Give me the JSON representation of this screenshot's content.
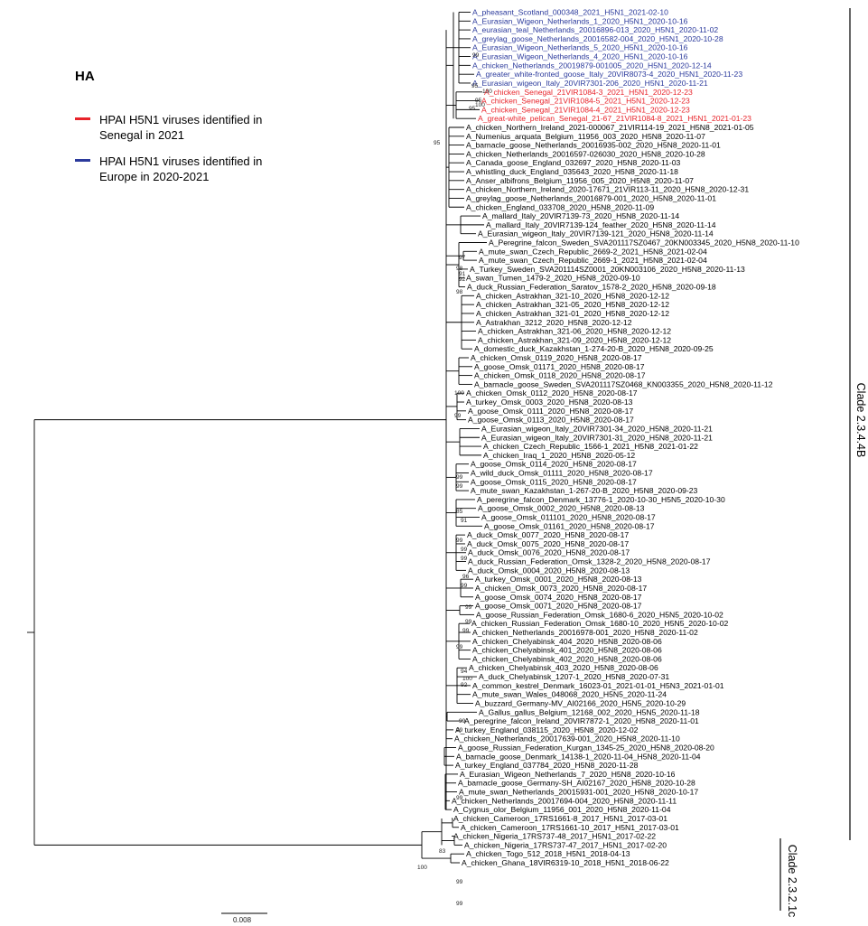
{
  "legend": {
    "title": "HA",
    "items": [
      {
        "label": "HPAI H5N1 viruses identified in Senegal in 2021",
        "color": "#e8232a"
      },
      {
        "label": "HPAI H5N1 viruses identified in Europe in 2020-2021",
        "color": "#2b3a9c"
      }
    ]
  },
  "colors": {
    "red": "#e8232a",
    "blue": "#2b3a9c",
    "black": "#000000"
  },
  "clades": [
    {
      "label": "Clade 2.3.4.4B"
    },
    {
      "label": "Clade 2.3.2.1c"
    }
  ],
  "scale_bar": {
    "label": "0.008"
  },
  "taxa": [
    {
      "label": "A_pheasant_Scotland_000348_2021_H5N1_2021-02-10",
      "color": "blue"
    },
    {
      "label": "A_Eurasian_Wigeon_Netherlands_1_2020_H5N1_2020-10-16",
      "color": "blue"
    },
    {
      "label": "A_eurasian_teal_Netherlands_20016896-013_2020_H5N1_2020-11-02",
      "color": "blue"
    },
    {
      "label": "A_greylag_goose_Netherlands_20016582-004_2020_H5N1_2020-10-28",
      "color": "blue"
    },
    {
      "label": "A_Eurasian_Wigeon_Netherlands_5_2020_H5N1_2020-10-16",
      "color": "blue"
    },
    {
      "label": "A_Eurasian_Wigeon_Netherlands_4_2020_H5N1_2020-10-16",
      "color": "blue"
    },
    {
      "label": "A_chicken_Netherlands_20019879-001005_2020_H5N1_2020-12-14",
      "color": "blue"
    },
    {
      "label": "A_greater_white-fronted_goose_Italy_20VIR8073-4_2020_H5N1_2020-11-23",
      "color": "blue"
    },
    {
      "label": "A_Eurasian_wigeon_Italy_20VIR7301-206_2020_H5N1_2020-11-21",
      "color": "blue"
    },
    {
      "label": "A_chicken_Senegal_21VIR1084-3_2021_H5N1_2020-12-23",
      "color": "red"
    },
    {
      "label": "A_chicken_Senegal_21VIR1084-5_2021_H5N1_2020-12-23",
      "color": "red"
    },
    {
      "label": "A_chicken_Senegal_21VIR1084-4_2021_H5N1_2020-12-23",
      "color": "red"
    },
    {
      "label": "A_great-white_pelican_Senegal_21-67_21VIR1084-8_2021_H5N1_2021-01-23",
      "color": "red"
    },
    {
      "label": "A_chicken_Northern_Ireland_2021-000067_21VIR114-19_2021_H5N8_2021-01-05",
      "color": "black"
    },
    {
      "label": "A_Numenius_arquata_Belgium_11956_003_2020_H5N8_2020-11-07",
      "color": "black"
    },
    {
      "label": "A_barnacle_goose_Netherlands_20016935-002_2020_H5N8_2020-11-01",
      "color": "black"
    },
    {
      "label": "A_chicken_Netherlands_20016597-026030_2020_H5N8_2020-10-28",
      "color": "black"
    },
    {
      "label": "A_Canada_goose_England_032697_2020_H5N8_2020-11-03",
      "color": "black"
    },
    {
      "label": "A_whistling_duck_England_035643_2020_H5N8_2020-11-18",
      "color": "black"
    },
    {
      "label": "A_Anser_albifrons_Belgium_11956_005_2020_H5N8_2020-11-07",
      "color": "black"
    },
    {
      "label": "A_chicken_Northern_Ireland_2020-17671_21VIR113-11_2020_H5N8_2020-12-31",
      "color": "black"
    },
    {
      "label": "A_greylag_goose_Netherlands_20016879-001_2020_H5N8_2020-11-01",
      "color": "black"
    },
    {
      "label": "A_chicken_England_033708_2020_H5N8_2020-11-09",
      "color": "black"
    },
    {
      "label": "A_mallard_Italy_20VIR7139-73_2020_H5N8_2020-11-14",
      "color": "black"
    },
    {
      "label": "A_mallard_Italy_20VIR7139-124_feather_2020_H5N8_2020-11-14",
      "color": "black"
    },
    {
      "label": "A_Eurasian_wigeon_Italy_20VIR7139-121_2020_H5N8_2020-11-14",
      "color": "black"
    },
    {
      "label": "A_Peregrine_falcon_Sweden_SVA201117SZ0467_20KN003345_2020_H5N8_2020-11-10",
      "color": "black"
    },
    {
      "label": "A_mute_swan_Czech_Republic_2669-2_2021_H5N8_2021-02-04",
      "color": "black"
    },
    {
      "label": "A_mute_swan_Czech_Republic_2669-1_2021_H5N8_2021-02-04",
      "color": "black"
    },
    {
      "label": "A_Turkey_Sweden_SVA201114SZ0001_20KN003106_2020_H5N8_2020-11-13",
      "color": "black"
    },
    {
      "label": "A_swan_Tumen_1479-2_2020_H5N8_2020-09-10",
      "color": "black"
    },
    {
      "label": "A_duck_Russian_Federation_Saratov_1578-2_2020_H5N8_2020-09-18",
      "color": "black"
    },
    {
      "label": "A_chicken_Astrakhan_321-10_2020_H5N8_2020-12-12",
      "color": "black"
    },
    {
      "label": "A_chicken_Astrakhan_321-05_2020_H5N8_2020-12-12",
      "color": "black"
    },
    {
      "label": "A_chicken_Astrakhan_321-01_2020_H5N8_2020-12-12",
      "color": "black"
    },
    {
      "label": "A_Astrakhan_3212_2020_H5N8_2020-12-12",
      "color": "black"
    },
    {
      "label": "A_chicken_Astrakhan_321-06_2020_H5N8_2020-12-12",
      "color": "black"
    },
    {
      "label": "A_chicken_Astrakhan_321-09_2020_H5N8_2020-12-12",
      "color": "black"
    },
    {
      "label": "A_domestic_duck_Kazakhstan_1-274-20-B_2020_H5N8_2020-09-25",
      "color": "black"
    },
    {
      "label": "A_chicken_Omsk_0119_2020_H5N8_2020-08-17",
      "color": "black"
    },
    {
      "label": "A_goose_Omsk_01171_2020_H5N8_2020-08-17",
      "color": "black"
    },
    {
      "label": "A_chicken_Omsk_0118_2020_H5N8_2020-08-17",
      "color": "black"
    },
    {
      "label": "A_barnacle_goose_Sweden_SVA201117SZ0468_KN003355_2020_H5N8_2020-11-12",
      "color": "black"
    },
    {
      "label": "A_chicken_Omsk_0112_2020_H5N8_2020-08-17",
      "color": "black"
    },
    {
      "label": "A_turkey_Omsk_0003_2020_H5N8_2020-08-13",
      "color": "black"
    },
    {
      "label": "A_goose_Omsk_0111_2020_H5N8_2020-08-17",
      "color": "black"
    },
    {
      "label": "A_goose_Omsk_0113_2020_H5N8_2020-08-17",
      "color": "black"
    },
    {
      "label": "A_Eurasian_wigeon_Italy_20VIR7301-34_2020_H5N8_2020-11-21",
      "color": "black"
    },
    {
      "label": "A_Eurasian_wigeon_Italy_20VIR7301-31_2020_H5N8_2020-11-21",
      "color": "black"
    },
    {
      "label": "A_chicken_Czech_Republic_1566-1_2021_H5N8_2021-01-22",
      "color": "black"
    },
    {
      "label": "A_chicken_Iraq_1_2020_H5N8_2020-05-12",
      "color": "black"
    },
    {
      "label": "A_goose_Omsk_0114_2020_H5N8_2020-08-17",
      "color": "black"
    },
    {
      "label": "A_wild_duck_Omsk_01111_2020_H5N8_2020-08-17",
      "color": "black"
    },
    {
      "label": "A_goose_Omsk_0115_2020_H5N8_2020-08-17",
      "color": "black"
    },
    {
      "label": "A_mute_swan_Kazakhstan_1-267-20-B_2020_H5N8_2020-09-23",
      "color": "black"
    },
    {
      "label": "A_peregrine_falcon_Denmark_13776-1_2020-10-30_H5N5_2020-10-30",
      "color": "black"
    },
    {
      "label": "A_goose_Omsk_0002_2020_H5N8_2020-08-13",
      "color": "black"
    },
    {
      "label": "A_goose_Omsk_011101_2020_H5N8_2020-08-17",
      "color": "black"
    },
    {
      "label": "A_goose_Omsk_01161_2020_H5N8_2020-08-17",
      "color": "black"
    },
    {
      "label": "A_duck_Omsk_0077_2020_H5N8_2020-08-17",
      "color": "black"
    },
    {
      "label": "A_duck_Omsk_0075_2020_H5N8_2020-08-17",
      "color": "black"
    },
    {
      "label": "A_duck_Omsk_0076_2020_H5N8_2020-08-17",
      "color": "black"
    },
    {
      "label": "A_duck_Russian_Federation_Omsk_1328-2_2020_H5N8_2020-08-17",
      "color": "black"
    },
    {
      "label": "A_duck_Omsk_0004_2020_H5N8_2020-08-13",
      "color": "black"
    },
    {
      "label": "A_turkey_Omsk_0001_2020_H5N8_2020-08-13",
      "color": "black"
    },
    {
      "label": "A_chicken_Omsk_0073_2020_H5N8_2020-08-17",
      "color": "black"
    },
    {
      "label": "A_goose_Omsk_0074_2020_H5N8_2020-08-17",
      "color": "black"
    },
    {
      "label": "A_goose_Omsk_0071_2020_H5N8_2020-08-17",
      "color": "black"
    },
    {
      "label": "A_goose_Russian_Federation_Omsk_1680-6_2020_H5N5_2020-10-02",
      "color": "black"
    },
    {
      "label": "A_chicken_Russian_Federation_Omsk_1680-10_2020_H5N5_2020-10-02",
      "color": "black"
    },
    {
      "label": "A_chicken_Netherlands_20016978-001_2020_H5N8_2020-11-02",
      "color": "black"
    },
    {
      "label": "A_chicken_Chelyabinsk_404_2020_H5N8_2020-08-06",
      "color": "black"
    },
    {
      "label": "A_chicken_Chelyabinsk_401_2020_H5N8_2020-08-06",
      "color": "black"
    },
    {
      "label": "A_chicken_Chelyabinsk_402_2020_H5N8_2020-08-06",
      "color": "black"
    },
    {
      "label": "A_chicken_Chelyabinsk_403_2020_H5N8_2020-08-06",
      "color": "black"
    },
    {
      "label": "A_duck_Chelyabinsk_1207-1_2020_H5N8_2020-07-31",
      "color": "black"
    },
    {
      "label": "A_common_kestrel_Denmark_16023-01_2021-01-01_H5N3_2021-01-01",
      "color": "black"
    },
    {
      "label": "A_mute_swan_Wales_048068_2020_H5N5_2020-11-24",
      "color": "black"
    },
    {
      "label": "A_buzzard_Germany-MV_AI02166_2020_H5N5_2020-10-29",
      "color": "black"
    },
    {
      "label": "A_Gallus_gallus_Belgium_12168_002_2020_H5N5_2020-11-18",
      "color": "black"
    },
    {
      "label": "A_peregrine_falcon_Ireland_20VIR7872-1_2020_H5N8_2020-11-01",
      "color": "black"
    },
    {
      "label": "A_turkey_England_038115_2020_H5N8_2020-12-02",
      "color": "black"
    },
    {
      "label": "A_chicken_Netherlands_20017639-001_2020_H5N8_2020-11-10",
      "color": "black"
    },
    {
      "label": "A_goose_Russian_Federation_Kurgan_1345-25_2020_H5N8_2020-08-20",
      "color": "black"
    },
    {
      "label": "A_barnacle_goose_Denmark_14138-1_2020-11-04_H5N8_2020-11-04",
      "color": "black"
    },
    {
      "label": "A_turkey_England_037784_2020_H5N8_2020-11-28",
      "color": "black"
    },
    {
      "label": "A_Eurasian_Wigeon_Netherlands_7_2020_H5N8_2020-10-16",
      "color": "black"
    },
    {
      "label": "A_barnacle_goose_Germany-SH_AI02167_2020_H5N8_2020-10-28",
      "color": "black"
    },
    {
      "label": "A_mute_swan_Netherlands_20015931-001_2020_H5N8_2020-10-17",
      "color": "black"
    },
    {
      "label": "A_chicken_Netherlands_20017694-004_2020_H5N8_2020-11-11",
      "color": "black"
    },
    {
      "label": "A_Cygnus_olor_Belgium_11956_001_2020_H5N8_2020-11-04",
      "color": "black"
    },
    {
      "label": "A_chicken_Cameroon_17RS1661-8_2017_H5N1_2017-03-01",
      "color": "black"
    },
    {
      "label": "A_chicken_Cameroon_17RS1661-10_2017_H5N1_2017-03-01",
      "color": "black"
    },
    {
      "label": "A_chicken_Nigeria_17RS737-48_2017_H5N1_2017-02-22",
      "color": "black"
    },
    {
      "label": "A_chicken_Nigeria_17RS737-47_2017_H5N1_2017-02-20",
      "color": "black"
    },
    {
      "label": "A_chicken_Togo_512_2018_H5N1_2018-04-13",
      "color": "black"
    },
    {
      "label": "A_chicken_Ghana_18VIR6319-10_2018_H5N1_2018-06-22",
      "color": "black"
    }
  ],
  "bootstrap": [
    "99",
    "95",
    "100",
    "95",
    "100",
    "95",
    "95",
    "97",
    "98",
    "91",
    "92",
    "98",
    "100",
    "99",
    "99",
    "99",
    "85",
    "91",
    "99",
    "99",
    "99",
    "96",
    "99",
    "99",
    "99",
    "99",
    "99",
    "94",
    "100",
    "92",
    "99",
    "99",
    "99",
    "83",
    "100",
    "99",
    "99"
  ]
}
